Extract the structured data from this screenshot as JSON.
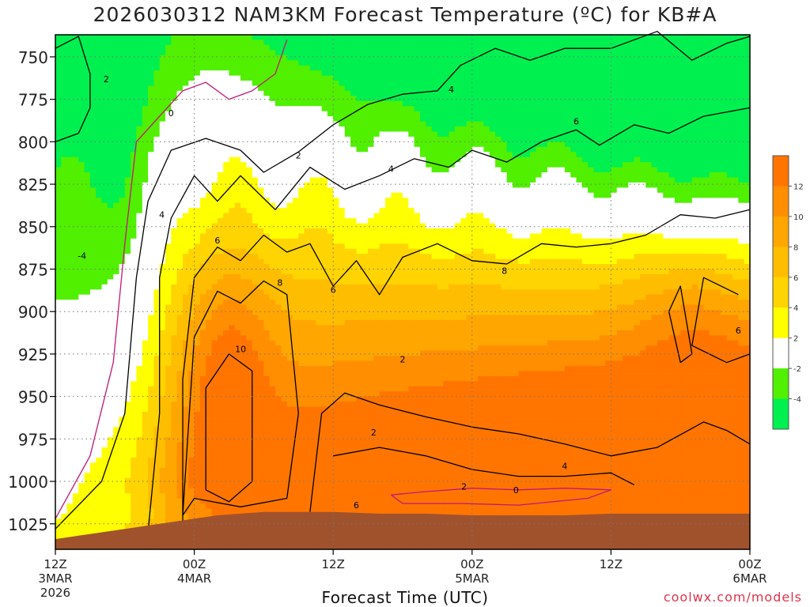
{
  "chart_data": {
    "type": "heatmap",
    "title": "2026030312 NAM3KM Forecast Temperature (ºC) for KB#A",
    "xlabel": "Forecast Time (UTC)",
    "ylabel": "",
    "y_axis": {
      "ticks": [
        "750",
        "775",
        "800",
        "825",
        "850",
        "875",
        "900",
        "925",
        "950",
        "975",
        "1000",
        "1025"
      ],
      "range": [
        737,
        1040
      ],
      "inverted": true
    },
    "x_axis": {
      "ticks": [
        {
          "hour": 0,
          "label": [
            "12Z",
            "3MAR",
            "2026"
          ]
        },
        {
          "hour": 12,
          "label": [
            "00Z",
            "4MAR"
          ]
        },
        {
          "hour": 24,
          "label": [
            "12Z"
          ]
        },
        {
          "hour": 36,
          "label": [
            "00Z",
            "5MAR"
          ]
        },
        {
          "hour": 48,
          "label": [
            "12Z"
          ]
        },
        {
          "hour": 60,
          "label": [
            "00Z",
            "6MAR"
          ]
        }
      ],
      "range": [
        0,
        60
      ]
    },
    "colorbar": {
      "labels": [
        "12",
        "10",
        "8",
        "6",
        "4",
        "2",
        "-2",
        "-4"
      ],
      "bins": [
        {
          "min": 12,
          "color": "#ff7500"
        },
        {
          "min": 10,
          "color": "#ff8e00"
        },
        {
          "min": 8,
          "color": "#ffa600"
        },
        {
          "min": 6,
          "color": "#ffbd00"
        },
        {
          "min": 4,
          "color": "#ffd400"
        },
        {
          "min": 2,
          "color": "#ffff00"
        },
        {
          "min": -2,
          "color": "#ffffff"
        },
        {
          "min": -4,
          "color": "#50f000"
        },
        {
          "min": -99,
          "color": "#00f050"
        }
      ]
    },
    "contour_labels": [
      "2",
      "0",
      "2",
      "-4",
      "4",
      "6",
      "8",
      "10",
      "6",
      "2",
      "4",
      "2",
      "4",
      "6",
      "8",
      "6",
      "4",
      "6",
      "2",
      "0"
    ],
    "colors": {
      "terrain": "#a0522d",
      "zero_line": "#c0187a",
      "contour": "#000000",
      "grid": "#777777"
    },
    "grid": true,
    "credit": "coolwx.com/models"
  }
}
